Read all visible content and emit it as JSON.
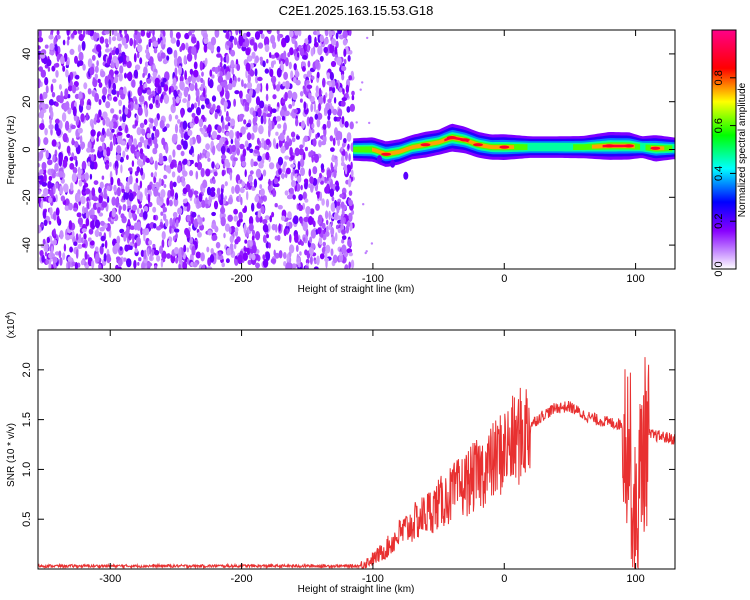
{
  "title": "C2E1.2025.163.15.53.G18",
  "chart_data": [
    {
      "type": "heatmap",
      "xlabel": "Height of straight line (km)",
      "ylabel": "Frequency (Hz)",
      "xlim": [
        -355,
        130
      ],
      "ylim": [
        -50,
        50
      ],
      "xticks": [
        -300,
        -200,
        -100,
        0,
        100
      ],
      "yticks": [
        -40,
        -20,
        0,
        20,
        40
      ],
      "colorbar": {
        "label": "Normalized spectral amplitude",
        "range": [
          0,
          1
        ],
        "ticks": [
          "0.0",
          "0.2",
          "0.4",
          "0.6",
          "0.8"
        ],
        "colors": [
          "#ffffff",
          "#8800ff",
          "#0000ff",
          "#00ffff",
          "#00ff00",
          "#ffff00",
          "#ff0000",
          "#ff0088"
        ]
      },
      "noise_region_x": [
        -355,
        -115
      ],
      "ridge": [
        {
          "x": -115,
          "freq": 0,
          "amp": 0.55
        },
        {
          "x": -100,
          "freq": 0,
          "amp": 0.7
        },
        {
          "x": -90,
          "freq": -2,
          "amp": 0.8
        },
        {
          "x": -80,
          "freq": -1,
          "amp": 0.75
        },
        {
          "x": -70,
          "freq": 1,
          "amp": 0.7
        },
        {
          "x": -60,
          "freq": 2,
          "amp": 0.8
        },
        {
          "x": -50,
          "freq": 3,
          "amp": 0.75
        },
        {
          "x": -40,
          "freq": 5,
          "amp": 0.95
        },
        {
          "x": -30,
          "freq": 4,
          "amp": 0.85
        },
        {
          "x": -20,
          "freq": 2,
          "amp": 0.8
        },
        {
          "x": -10,
          "freq": 1,
          "amp": 0.75
        },
        {
          "x": 0,
          "freq": 1,
          "amp": 0.8
        },
        {
          "x": 20,
          "freq": 1,
          "amp": 0.5
        },
        {
          "x": 40,
          "freq": 1,
          "amp": 0.5
        },
        {
          "x": 60,
          "freq": 1,
          "amp": 0.55
        },
        {
          "x": 80,
          "freq": 1.5,
          "amp": 0.95
        },
        {
          "x": 95,
          "freq": 1.5,
          "amp": 0.9
        },
        {
          "x": 105,
          "freq": 1,
          "amp": 0.5
        },
        {
          "x": 115,
          "freq": 0.5,
          "amp": 0.85
        },
        {
          "x": 130,
          "freq": 0.5,
          "amp": 0.5
        }
      ]
    },
    {
      "type": "line",
      "xlabel": "Height of straight line (km)",
      "ylabel": "SNR (10 * v/v)",
      "yscale_label": "(x10",
      "yscale_exp": "4",
      "yscale_close": ")",
      "xlim": [
        -355,
        130
      ],
      "ylim": [
        0,
        2.4
      ],
      "xticks": [
        -300,
        -200,
        -100,
        0,
        100
      ],
      "yticks": [
        "0.5",
        "1.0",
        "1.5",
        "2.0"
      ],
      "color": "#e83030",
      "series": [
        {
          "x": [
            -355,
            -300,
            -250,
            -200,
            -150,
            -110,
            -100,
            -90,
            -80,
            -70,
            -60,
            -50,
            -40,
            -30,
            -20,
            -10,
            0,
            10,
            20,
            30,
            40,
            50,
            60,
            70,
            80,
            90,
            95,
            100,
            105,
            110,
            120,
            130
          ],
          "y": [
            0.03,
            0.03,
            0.03,
            0.03,
            0.03,
            0.03,
            0.1,
            0.2,
            0.35,
            0.45,
            0.55,
            0.65,
            0.75,
            0.85,
            0.95,
            1.05,
            1.2,
            1.3,
            1.45,
            1.55,
            1.62,
            1.63,
            1.55,
            1.5,
            1.47,
            1.45,
            1.3,
            0.3,
            1.2,
            1.35,
            1.33,
            1.3
          ]
        }
      ]
    }
  ]
}
